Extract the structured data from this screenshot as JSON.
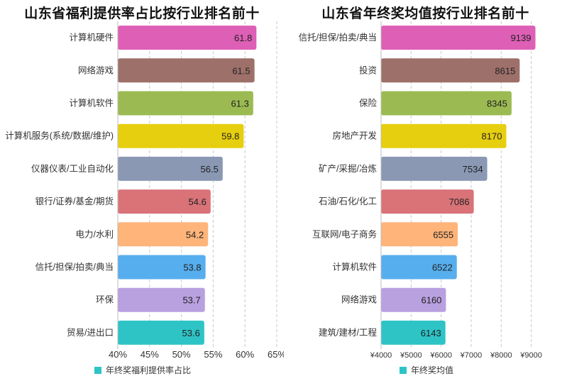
{
  "chart_data": [
    {
      "type": "bar",
      "orientation": "horizontal",
      "title": "山东省福利提供率占比按行业排名前十",
      "categories": [
        "计算机硬件",
        "网络游戏",
        "计算机软件",
        "计算机服务(系统/数据/维护)",
        "仪器仪表/工业自动化",
        "银行/证券/基金/期货",
        "电力/水利",
        "信托/担保/拍卖/典当",
        "环保",
        "贸易/进出口"
      ],
      "series": [
        {
          "name": "年终奖福利提供率占比",
          "values": [
            61.8,
            61.5,
            61.3,
            59.8,
            56.5,
            54.6,
            54.2,
            53.8,
            53.7,
            53.6
          ]
        }
      ],
      "x_ticks": [
        "40%",
        "45%",
        "50%",
        "55%",
        "60%",
        "65%"
      ],
      "xlim": [
        40,
        65
      ],
      "bar_colors": [
        "#DE5FB6",
        "#9E706A",
        "#9BBB52",
        "#E6CF0E",
        "#8A98B4",
        "#D97378",
        "#FFB47A",
        "#56AEEE",
        "#B9A0DF",
        "#2EC4C6"
      ],
      "grid": "vertical-dashed",
      "legend_position": "bottom-left"
    },
    {
      "type": "bar",
      "orientation": "horizontal",
      "title": "山东省年终奖均值按行业排名前十",
      "categories": [
        "信托/担保/拍卖/典当",
        "投资",
        "保险",
        "房地产开发",
        "矿产/采掘/冶炼",
        "石油/石化/化工",
        "互联网/电子商务",
        "计算机软件",
        "网络游戏",
        "建筑/建材/工程"
      ],
      "series": [
        {
          "name": "年终奖均值",
          "values": [
            9139,
            8615,
            8345,
            8170,
            7534,
            7086,
            6555,
            6522,
            6160,
            6143
          ]
        }
      ],
      "x_ticks": [
        "¥4000",
        "¥5000",
        "¥6000",
        "¥7000",
        "¥8000",
        "¥9000"
      ],
      "xlim": [
        4000,
        9600
      ],
      "bar_colors": [
        "#DE5FB6",
        "#9E706A",
        "#9BBB52",
        "#E6CF0E",
        "#8A98B4",
        "#D97378",
        "#FFB47A",
        "#56AEEE",
        "#B9A0DF",
        "#2EC4C6"
      ],
      "grid": "vertical-dashed",
      "legend_position": "bottom-left"
    }
  ]
}
